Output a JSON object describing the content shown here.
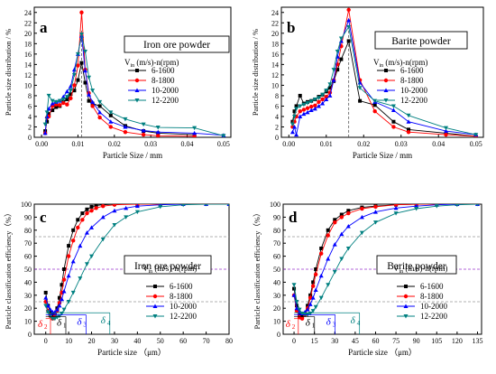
{
  "chart_data": [
    {
      "type": "line",
      "panel_label": "a",
      "inset_title": "Iron ore powder",
      "xlabel": "Particle Size / mm",
      "ylabel": "Particle size distribution / %",
      "xlim": [
        -0.002,
        0.052
      ],
      "ylim": [
        0,
        25
      ],
      "xticks": [
        0.0,
        0.01,
        0.02,
        0.03,
        0.04,
        0.05
      ],
      "xtick_labels": [
        "0.00",
        "0.01",
        "0.02",
        "0.03",
        "0.04",
        "0.05"
      ],
      "yticks": [
        0,
        2,
        4,
        6,
        8,
        10,
        12,
        14,
        16,
        18,
        20,
        22,
        24
      ],
      "vline": 0.011,
      "legend_title": "V_in (m/s)-n(rpm)",
      "legend_placement": "right",
      "grid": false,
      "series": [
        {
          "name": "6-1600",
          "color": "#000000",
          "marker": "square",
          "x": [
            0.001,
            0.0015,
            0.002,
            0.003,
            0.004,
            0.005,
            0.006,
            0.007,
            0.008,
            0.009,
            0.01,
            0.011,
            0.012,
            0.013,
            0.014,
            0.016,
            0.019,
            0.023,
            0.028,
            0.032,
            0.042
          ],
          "y": [
            1.2,
            3.0,
            4.5,
            5.2,
            5.8,
            6.0,
            6.8,
            7.3,
            8.3,
            9.0,
            11.0,
            14.3,
            10.5,
            7.0,
            6.5,
            6.0,
            4.2,
            2.2,
            1.2,
            0.8,
            0.5
          ]
        },
        {
          "name": "8-1800",
          "color": "#ff0000",
          "marker": "circle",
          "x": [
            0.001,
            0.0015,
            0.002,
            0.003,
            0.004,
            0.005,
            0.006,
            0.007,
            0.008,
            0.009,
            0.01,
            0.011,
            0.012,
            0.013,
            0.014,
            0.016,
            0.019,
            0.023,
            0.028,
            0.032,
            0.042
          ],
          "y": [
            0.8,
            3.8,
            4.0,
            6.0,
            6.3,
            6.2,
            6.6,
            6.3,
            7.5,
            10.0,
            13.8,
            24.0,
            13.0,
            8.5,
            6.0,
            3.8,
            2.0,
            1.0,
            0.5,
            0.3,
            0.2
          ]
        },
        {
          "name": "10-2000",
          "color": "#0000ff",
          "marker": "triangle-up",
          "x": [
            0.001,
            0.0015,
            0.002,
            0.003,
            0.004,
            0.005,
            0.006,
            0.007,
            0.008,
            0.009,
            0.01,
            0.011,
            0.012,
            0.013,
            0.014,
            0.016,
            0.019,
            0.023,
            0.028,
            0.032,
            0.042,
            0.05
          ],
          "y": [
            0.8,
            4.0,
            5.5,
            6.5,
            6.8,
            7.0,
            7.8,
            8.8,
            9.8,
            13.0,
            16.0,
            19.5,
            12.8,
            8.2,
            6.8,
            4.8,
            3.0,
            2.0,
            1.3,
            1.0,
            0.8,
            0.4
          ]
        },
        {
          "name": "12-2200",
          "color": "#008080",
          "marker": "triangle-down",
          "x": [
            0.001,
            0.0015,
            0.002,
            0.003,
            0.004,
            0.005,
            0.006,
            0.007,
            0.008,
            0.009,
            0.01,
            0.011,
            0.012,
            0.013,
            0.014,
            0.016,
            0.019,
            0.023,
            0.028,
            0.032,
            0.042,
            0.05
          ],
          "y": [
            2.5,
            4.8,
            8.0,
            7.0,
            6.8,
            7.0,
            7.3,
            7.8,
            9.0,
            12.0,
            16.0,
            19.8,
            16.5,
            11.5,
            9.0,
            6.8,
            4.8,
            3.5,
            2.5,
            1.9,
            1.8,
            0.3
          ]
        }
      ]
    },
    {
      "type": "line",
      "panel_label": "b",
      "inset_title": "Barite powder",
      "xlabel": "Particle Size / mm",
      "ylabel": "Particle size distribution / %",
      "xlim": [
        -0.002,
        0.052
      ],
      "ylim": [
        0,
        25
      ],
      "xticks": [
        0.0,
        0.01,
        0.02,
        0.03,
        0.04,
        0.05
      ],
      "xtick_labels": [
        "0.00",
        "0.01",
        "0.02",
        "0.03",
        "0.04",
        "0.05"
      ],
      "yticks": [
        0,
        2,
        4,
        6,
        8,
        10,
        12,
        14,
        16,
        18,
        20,
        22,
        24
      ],
      "vline": 0.016,
      "legend_title": "V_in (m/s)-n(rpm)",
      "legend_placement": "right",
      "grid": false,
      "series": [
        {
          "name": "6-1600",
          "color": "#000000",
          "marker": "square",
          "x": [
            0.001,
            0.0015,
            0.002,
            0.003,
            0.004,
            0.005,
            0.006,
            0.007,
            0.008,
            0.009,
            0.01,
            0.011,
            0.012,
            0.013,
            0.014,
            0.016,
            0.019,
            0.023,
            0.028,
            0.032,
            0.042,
            0.05
          ],
          "y": [
            3.0,
            5.0,
            6.0,
            8.0,
            6.5,
            6.8,
            7.0,
            7.3,
            7.8,
            8.2,
            8.8,
            9.5,
            10.8,
            13.0,
            15.0,
            18.5,
            7.0,
            6.2,
            3.0,
            1.5,
            0.8,
            0.2
          ]
        },
        {
          "name": "8-1800",
          "color": "#ff0000",
          "marker": "circle",
          "x": [
            0.001,
            0.0015,
            0.002,
            0.003,
            0.004,
            0.005,
            0.006,
            0.007,
            0.008,
            0.009,
            0.01,
            0.011,
            0.012,
            0.013,
            0.014,
            0.016,
            0.019,
            0.023,
            0.028,
            0.032,
            0.042,
            0.05
          ],
          "y": [
            2.0,
            3.0,
            4.0,
            5.0,
            5.3,
            5.6,
            5.9,
            6.1,
            6.8,
            7.3,
            7.8,
            8.6,
            11.0,
            14.0,
            17.5,
            24.5,
            11.0,
            5.0,
            2.0,
            1.0,
            0.5,
            0.2
          ]
        },
        {
          "name": "10-2000",
          "color": "#0000ff",
          "marker": "triangle-up",
          "x": [
            0.001,
            0.0015,
            0.002,
            0.003,
            0.004,
            0.005,
            0.006,
            0.007,
            0.008,
            0.009,
            0.01,
            0.011,
            0.012,
            0.013,
            0.014,
            0.016,
            0.019,
            0.023,
            0.028,
            0.032,
            0.042,
            0.05
          ],
          "y": [
            1.0,
            2.0,
            0.5,
            4.0,
            4.5,
            4.8,
            5.2,
            5.5,
            6.0,
            6.5,
            7.3,
            8.0,
            11.0,
            15.5,
            18.5,
            22.5,
            10.5,
            6.8,
            5.2,
            3.0,
            1.2,
            0.5
          ]
        },
        {
          "name": "12-2200",
          "color": "#008080",
          "marker": "triangle-down",
          "x": [
            0.001,
            0.0015,
            0.002,
            0.003,
            0.004,
            0.005,
            0.006,
            0.007,
            0.008,
            0.009,
            0.01,
            0.011,
            0.012,
            0.013,
            0.014,
            0.016,
            0.019,
            0.023,
            0.028,
            0.032,
            0.042,
            0.05
          ],
          "y": [
            2.5,
            4.0,
            5.5,
            6.0,
            6.3,
            6.6,
            6.9,
            7.3,
            7.6,
            8.2,
            9.0,
            10.2,
            13.0,
            16.5,
            19.0,
            21.2,
            9.5,
            7.0,
            6.0,
            4.2,
            1.8,
            0.5
          ]
        }
      ]
    },
    {
      "type": "line",
      "panel_label": "c",
      "inset_title": "Iron ore powder",
      "xlabel": "Particle size （μm）",
      "ylabel": "Particle classification efficiency（%）",
      "xlim": [
        -5,
        80
      ],
      "ylim": [
        0,
        100
      ],
      "xticks": [
        0,
        10,
        20,
        30,
        40,
        50,
        60,
        70,
        80
      ],
      "yticks": [
        0,
        10,
        20,
        30,
        40,
        50,
        60,
        70,
        80,
        90,
        100
      ],
      "hlines": [
        {
          "y": 75,
          "color": "#999999"
        },
        {
          "y": 50,
          "color": "#9933cc"
        },
        {
          "y": 25,
          "color": "#999999"
        }
      ],
      "annotations": [
        "δ2",
        "δ1",
        "δ3",
        "δ4"
      ],
      "legend_title": "V_in (m/s)-n(rpm)",
      "legend_placement": "bottom-right",
      "grid": false,
      "series": [
        {
          "name": "6-1600",
          "color": "#000000",
          "marker": "square",
          "x": [
            0,
            1,
            2,
            3,
            4,
            5,
            6,
            7,
            8,
            10,
            12,
            14,
            16,
            18,
            20,
            22,
            25,
            30,
            40,
            50
          ],
          "y": [
            32,
            22,
            17,
            15,
            16,
            20,
            28,
            38,
            50,
            68,
            80,
            88,
            93,
            96,
            98,
            99,
            99.5,
            100,
            100,
            100
          ]
        },
        {
          "name": "8-1800",
          "color": "#ff0000",
          "marker": "circle",
          "x": [
            0,
            1,
            2,
            3,
            4,
            5,
            6,
            7,
            8,
            10,
            12,
            14,
            16,
            18,
            20,
            22,
            25,
            30,
            40,
            50
          ],
          "y": [
            25,
            18,
            14,
            12,
            14,
            18,
            24,
            32,
            42,
            60,
            72,
            82,
            88,
            93,
            95,
            97,
            98.5,
            99.5,
            100,
            100
          ]
        },
        {
          "name": "10-2000",
          "color": "#0000ff",
          "marker": "triangle-up",
          "x": [
            0,
            1,
            2,
            3,
            4,
            5,
            6,
            7,
            8,
            10,
            12,
            15,
            18,
            20,
            25,
            30,
            35,
            40,
            50,
            60,
            70,
            80
          ],
          "y": [
            28,
            22,
            19,
            17,
            17,
            19,
            22,
            27,
            33,
            45,
            56,
            68,
            78,
            82,
            90,
            95,
            97,
            98.5,
            99.5,
            100,
            100,
            100
          ]
        },
        {
          "name": "12-2200",
          "color": "#008080",
          "marker": "triangle-down",
          "x": [
            0,
            1,
            2,
            3,
            4,
            5,
            6,
            7,
            8,
            10,
            12,
            15,
            18,
            20,
            25,
            30,
            35,
            40,
            50,
            60,
            70,
            80
          ],
          "y": [
            22,
            17,
            14,
            12,
            12,
            13,
            14,
            16,
            19,
            25,
            32,
            43,
            54,
            60,
            73,
            84,
            90,
            94,
            98,
            99.5,
            100,
            100
          ]
        }
      ]
    },
    {
      "type": "line",
      "panel_label": "d",
      "inset_title": "Barite powder",
      "xlabel": "Particle size （μm）",
      "ylabel": "Particle classification efficiency（%）",
      "xlim": [
        -8,
        138
      ],
      "ylim": [
        0,
        100
      ],
      "xticks": [
        0,
        15,
        30,
        45,
        60,
        75,
        90,
        105,
        120,
        135
      ],
      "yticks": [
        0,
        10,
        20,
        30,
        40,
        50,
        60,
        70,
        80,
        90,
        100
      ],
      "hlines": [
        {
          "y": 75,
          "color": "#999999"
        },
        {
          "y": 50,
          "color": "#9933cc"
        },
        {
          "y": 25,
          "color": "#999999"
        }
      ],
      "annotations": [
        "δ2",
        "δ1",
        "δ3",
        "δ4"
      ],
      "legend_title": "V_in (m/s)-n(rpm)",
      "legend_placement": "bottom-right",
      "grid": false,
      "series": [
        {
          "name": "6-1600",
          "color": "#000000",
          "marker": "square",
          "x": [
            0,
            2,
            4,
            6,
            8,
            10,
            12,
            14,
            16,
            20,
            25,
            30,
            35,
            40,
            50,
            60,
            75,
            90,
            105,
            120
          ],
          "y": [
            35,
            22,
            15,
            14,
            16,
            22,
            30,
            40,
            50,
            66,
            80,
            88,
            92,
            95,
            97.5,
            98.5,
            99.5,
            100,
            100,
            100
          ]
        },
        {
          "name": "8-1800",
          "color": "#ff0000",
          "marker": "circle",
          "x": [
            0,
            2,
            4,
            6,
            8,
            10,
            12,
            14,
            16,
            20,
            25,
            30,
            35,
            40,
            50,
            60,
            75,
            90,
            105,
            120
          ],
          "y": [
            30,
            18,
            13,
            12,
            15,
            20,
            28,
            37,
            46,
            62,
            76,
            86,
            90,
            93,
            96.5,
            98,
            99.5,
            100,
            100,
            100
          ]
        },
        {
          "name": "10-2000",
          "color": "#0000ff",
          "marker": "triangle-up",
          "x": [
            0,
            2,
            4,
            6,
            8,
            10,
            12,
            14,
            16,
            20,
            25,
            30,
            35,
            40,
            50,
            60,
            75,
            90,
            105,
            120,
            135
          ],
          "y": [
            30,
            20,
            17,
            16,
            17,
            19,
            23,
            28,
            34,
            45,
            58,
            69,
            77,
            83,
            90,
            94,
            97,
            98.5,
            99.5,
            100,
            100
          ]
        },
        {
          "name": "12-2200",
          "color": "#008080",
          "marker": "triangle-down",
          "x": [
            0,
            2,
            4,
            6,
            8,
            10,
            12,
            14,
            16,
            20,
            25,
            30,
            35,
            40,
            50,
            60,
            75,
            90,
            105,
            120,
            135
          ],
          "y": [
            38,
            25,
            19,
            16,
            15,
            15,
            16,
            18,
            21,
            28,
            38,
            48,
            58,
            66,
            78,
            86,
            93,
            96.5,
            98.5,
            99.5,
            100
          ]
        }
      ]
    }
  ]
}
